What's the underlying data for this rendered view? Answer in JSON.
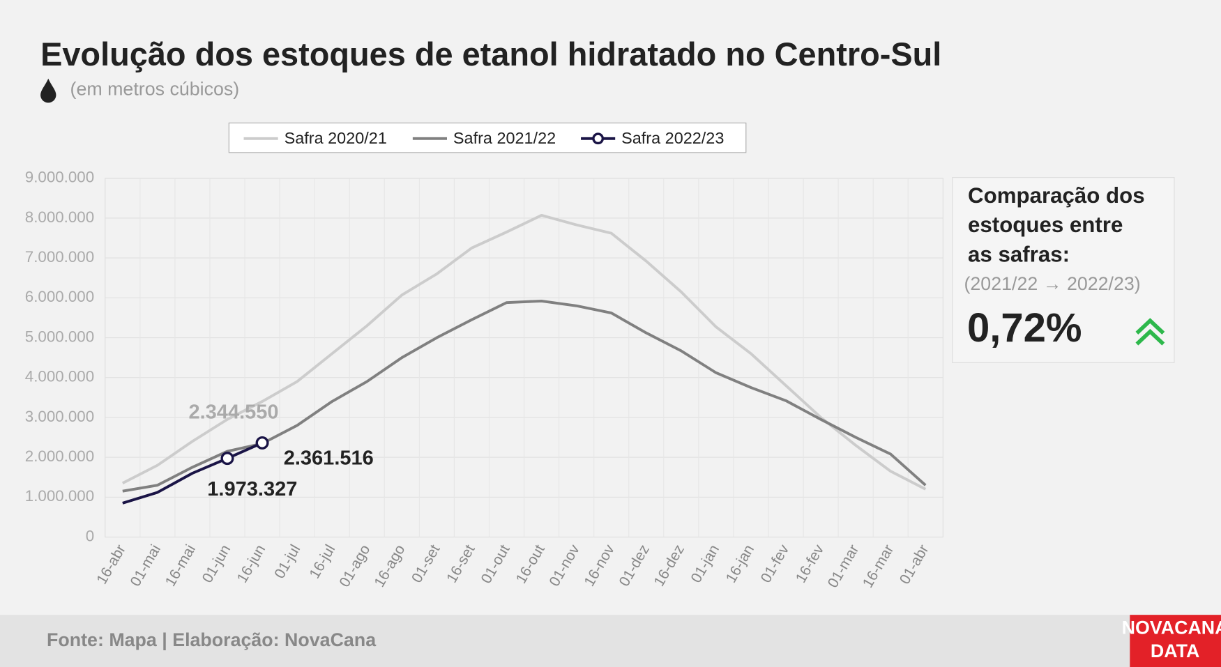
{
  "chart_data": {
    "type": "line",
    "title": "Evolução dos estoques de etanol hidratado no Centro-Sul",
    "subtitle": "(em metros cúbicos)",
    "categories": [
      "16-abr",
      "01-mai",
      "16-mai",
      "01-jun",
      "16-jun",
      "01-jul",
      "16-jul",
      "01-ago",
      "16-ago",
      "01-set",
      "16-set",
      "01-out",
      "16-out",
      "01-nov",
      "16-nov",
      "01-dez",
      "16-dez",
      "01-jan",
      "16-jan",
      "01-fev",
      "16-fev",
      "01-mar",
      "16-mar",
      "01-abr"
    ],
    "series": [
      {
        "name": "Safra 2020/21",
        "color": "#cccccc",
        "values": [
          1350000,
          1800000,
          2400000,
          2950000,
          3400000,
          3900000,
          4600000,
          5300000,
          6070000,
          6600000,
          7250000,
          7650000,
          8070000,
          7830000,
          7620000,
          6920000,
          6150000,
          5270000,
          4600000,
          3800000,
          3000000,
          2300000,
          1650000,
          1200000
        ]
      },
      {
        "name": "Safra 2021/22",
        "color": "#808080",
        "values": [
          1150000,
          1300000,
          1750000,
          2150000,
          2344550,
          2800000,
          3400000,
          3900000,
          4500000,
          5000000,
          5450000,
          5880000,
          5920000,
          5800000,
          5620000,
          5120000,
          4670000,
          4120000,
          3750000,
          3420000,
          2950000,
          2500000,
          2080000,
          1300000
        ],
        "value_labels": [
          null,
          null,
          null,
          null,
          "2.344.550",
          null,
          null,
          null,
          null,
          null,
          null,
          null,
          null,
          null,
          null,
          null,
          null,
          null,
          null,
          null,
          null,
          null,
          null,
          null
        ]
      },
      {
        "name": "Safra 2022/23",
        "color": "#1a1446",
        "marker": true,
        "values": [
          850000,
          1120000,
          1600000,
          1973327,
          2361516,
          null,
          null,
          null,
          null,
          null,
          null,
          null,
          null,
          null,
          null,
          null,
          null,
          null,
          null,
          null,
          null,
          null,
          null,
          null
        ],
        "value_labels": [
          null,
          null,
          null,
          "1.973.327",
          "2.361.516",
          null,
          null,
          null,
          null,
          null,
          null,
          null,
          null,
          null,
          null,
          null,
          null,
          null,
          null,
          null,
          null,
          null,
          null,
          null
        ]
      }
    ],
    "ylim": [
      0,
      9000000
    ],
    "yticks": [
      0,
      {
        "value": 1000000,
        "label": "1.000.000"
      },
      {
        "value": 2000000,
        "label": "2.000.000"
      },
      {
        "value": 3000000,
        "label": "3.000.000"
      },
      {
        "value": 4000000,
        "label": "4.000.000"
      },
      {
        "value": 5000000,
        "label": "5.000.000"
      },
      {
        "value": 6000000,
        "label": "6.000.000"
      },
      {
        "value": 7000000,
        "label": "7.000.000"
      },
      {
        "value": 8000000,
        "label": "8.000.000"
      },
      {
        "value": 9000000,
        "label": "9.000.000"
      }
    ],
    "grid": true
  },
  "comparison": {
    "title_lines": [
      "Comparação dos",
      "estoques entre",
      "as safras:"
    ],
    "period": "(2021/22 → 2022/23)",
    "value": "0,72%"
  },
  "footer": {
    "source": "Fonte: Mapa | Elaboração: NovaCana",
    "logo_lines": [
      "NOVACANA",
      "DATA"
    ]
  }
}
